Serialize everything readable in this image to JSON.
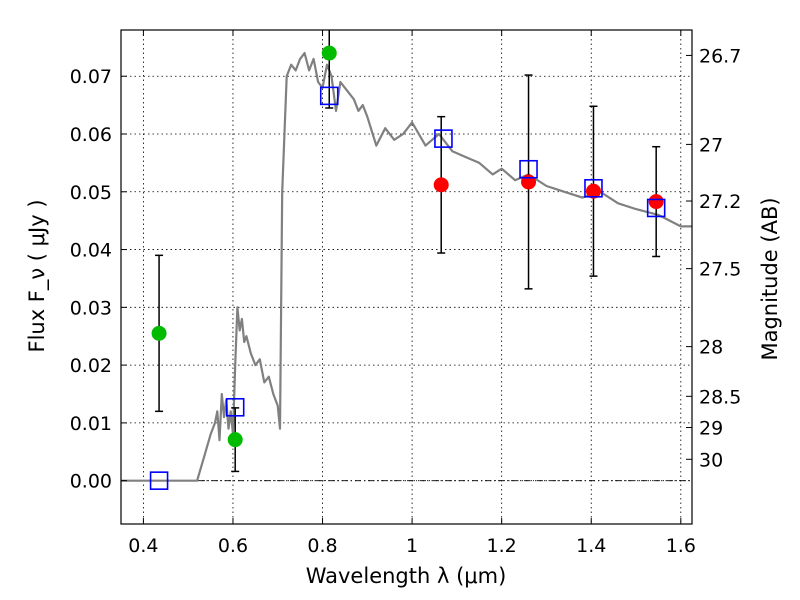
{
  "chart_data": {
    "type": "scatter",
    "xlabel": "Wavelength  λ (μm)",
    "ylabel": "Flux  F_ν  ( μJy )",
    "ylabel_right": "Magnitude (AB)",
    "xlim": [
      0.35,
      1.625
    ],
    "ylim": [
      -0.0075,
      0.078
    ],
    "x_ticks": [
      0.4,
      0.6,
      0.8,
      1.0,
      1.2,
      1.4,
      1.6
    ],
    "x_tick_labels": [
      "0.4",
      "0.6",
      "0.8",
      "1",
      "1.2",
      "1.4",
      "1.6"
    ],
    "y_ticks": [
      0.0,
      0.01,
      0.02,
      0.03,
      0.04,
      0.05,
      0.06,
      0.07
    ],
    "y_tick_labels": [
      "0.00",
      "0.01",
      "0.02",
      "0.03",
      "0.04",
      "0.05",
      "0.06",
      "0.07"
    ],
    "right_ticks": [
      {
        "label": "26.7",
        "flux": 0.0736
      },
      {
        "label": "27",
        "flux": 0.0582
      },
      {
        "label": "27.2",
        "flux": 0.0484
      },
      {
        "label": "27.5",
        "flux": 0.0367
      },
      {
        "label": "28",
        "flux": 0.0232
      },
      {
        "label": "28.5",
        "flux": 0.0146
      },
      {
        "label": "29",
        "flux": 0.0092
      },
      {
        "label": "30",
        "flux": 0.0037
      }
    ],
    "grid": true,
    "model_spectrum": {
      "color": "#808080",
      "x": [
        0.35,
        0.52,
        0.535,
        0.55,
        0.56,
        0.565,
        0.57,
        0.575,
        0.58,
        0.585,
        0.59,
        0.595,
        0.6,
        0.605,
        0.61,
        0.615,
        0.62,
        0.625,
        0.63,
        0.64,
        0.65,
        0.66,
        0.67,
        0.68,
        0.69,
        0.7,
        0.705,
        0.71,
        0.72,
        0.73,
        0.74,
        0.75,
        0.76,
        0.77,
        0.78,
        0.79,
        0.8,
        0.81,
        0.82,
        0.83,
        0.84,
        0.85,
        0.86,
        0.87,
        0.88,
        0.89,
        0.9,
        0.92,
        0.94,
        0.96,
        0.98,
        1.0,
        1.03,
        1.06,
        1.09,
        1.12,
        1.15,
        1.18,
        1.2,
        1.23,
        1.26,
        1.3,
        1.34,
        1.38,
        1.42,
        1.46,
        1.5,
        1.55,
        1.6,
        1.625
      ],
      "y": [
        0.0,
        0.0,
        0.004,
        0.008,
        0.01,
        0.012,
        0.007,
        0.015,
        0.011,
        0.014,
        0.009,
        0.012,
        0.008,
        0.02,
        0.03,
        0.026,
        0.028,
        0.024,
        0.025,
        0.022,
        0.02,
        0.021,
        0.017,
        0.018,
        0.015,
        0.013,
        0.009,
        0.05,
        0.07,
        0.072,
        0.071,
        0.073,
        0.074,
        0.071,
        0.073,
        0.069,
        0.068,
        0.072,
        0.07,
        0.064,
        0.069,
        0.068,
        0.067,
        0.066,
        0.064,
        0.065,
        0.063,
        0.058,
        0.061,
        0.059,
        0.06,
        0.062,
        0.058,
        0.06,
        0.057,
        0.056,
        0.055,
        0.053,
        0.054,
        0.052,
        0.053,
        0.051,
        0.05,
        0.049,
        0.05,
        0.048,
        0.047,
        0.046,
        0.044,
        0.044
      ]
    },
    "series": [
      {
        "marker": "circle",
        "color": "#00bb00",
        "points": [
          {
            "x": 0.435,
            "y": 0.0255,
            "err": 0.0135
          },
          {
            "x": 0.605,
            "y": 0.0071,
            "err": 0.0055
          },
          {
            "x": 0.815,
            "y": 0.074,
            "err": 0.0095
          }
        ]
      },
      {
        "marker": "circle",
        "color": "#ff0000",
        "points": [
          {
            "x": 1.065,
            "y": 0.0512,
            "err": 0.0118
          },
          {
            "x": 1.26,
            "y": 0.0517,
            "err": 0.0185
          },
          {
            "x": 1.405,
            "y": 0.0501,
            "err": 0.0147
          },
          {
            "x": 1.545,
            "y": 0.0483,
            "err": 0.0095
          }
        ]
      },
      {
        "marker": "open-square",
        "color": "#0000ff",
        "points": [
          {
            "x": 0.435,
            "y": 0.0
          },
          {
            "x": 0.605,
            "y": 0.0127
          },
          {
            "x": 0.815,
            "y": 0.0666
          },
          {
            "x": 1.07,
            "y": 0.0592
          },
          {
            "x": 1.26,
            "y": 0.0539
          },
          {
            "x": 1.405,
            "y": 0.0506
          },
          {
            "x": 1.545,
            "y": 0.0472
          }
        ]
      }
    ]
  }
}
